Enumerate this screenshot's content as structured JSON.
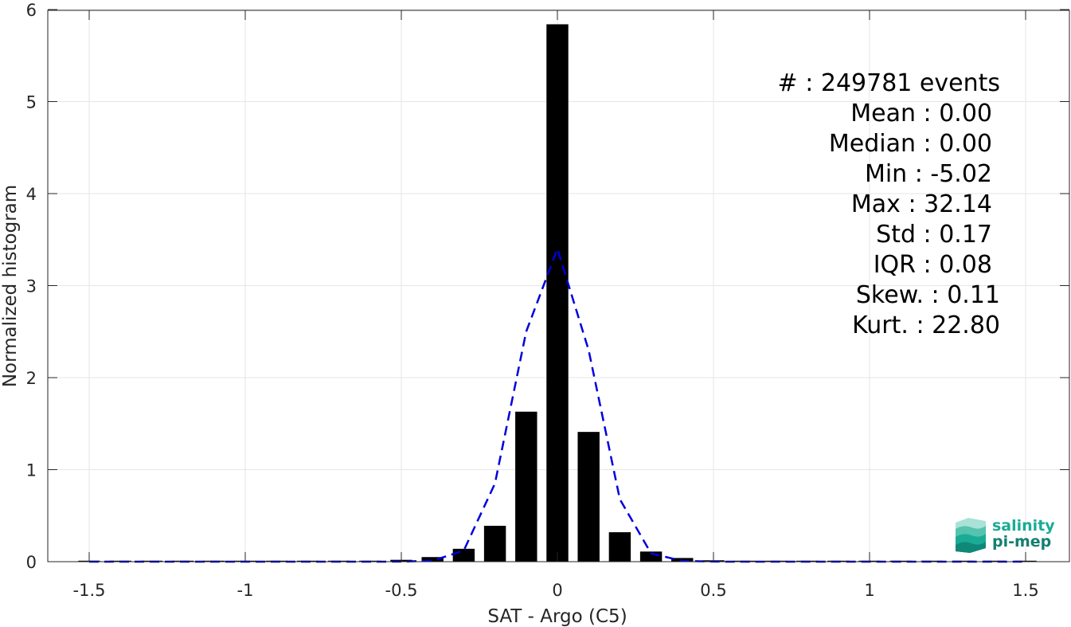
{
  "chart_data": {
    "type": "bar",
    "xlabel": "SAT - Argo (C5)",
    "ylabel": "Normalized histogram",
    "xlim": [
      -1.6,
      1.6
    ],
    "ylim": [
      0,
      6
    ],
    "xticks": [
      -1.5,
      -1,
      -0.5,
      0,
      0.5,
      1,
      1.5
    ],
    "xtick_labels": [
      "-1.5",
      "-1",
      "-0.5",
      "0",
      "0.5",
      "1",
      "1.5"
    ],
    "yticks": [
      0,
      1,
      2,
      3,
      4,
      5,
      6
    ],
    "ytick_labels": [
      "0",
      "1",
      "2",
      "3",
      "4",
      "5",
      "6"
    ],
    "grid": true,
    "bar_width": 0.07,
    "bars": {
      "x": [
        -1.5,
        -1.4,
        -1.3,
        -1.2,
        -1.1,
        -1.0,
        -0.9,
        -0.8,
        -0.7,
        -0.6,
        -0.5,
        -0.4,
        -0.3,
        -0.2,
        -0.1,
        0.0,
        0.1,
        0.2,
        0.3,
        0.4,
        0.5,
        0.6,
        0.7,
        0.8,
        0.9,
        1.0,
        1.1,
        1.2,
        1.3,
        1.4,
        1.5
      ],
      "values": [
        0.002,
        0.002,
        0.002,
        0.002,
        0.002,
        0.002,
        0.003,
        0.003,
        0.004,
        0.006,
        0.02,
        0.05,
        0.14,
        0.39,
        1.63,
        5.84,
        1.41,
        0.32,
        0.11,
        0.04,
        0.015,
        0.006,
        0.004,
        0.003,
        0.003,
        0.002,
        0.002,
        0.002,
        0.002,
        0.002,
        0.002
      ],
      "color": "#000000"
    },
    "fit_line": {
      "style": "dashed",
      "color": "#0000dd",
      "x": [
        -1.5,
        -1.4,
        -1.3,
        -1.2,
        -1.1,
        -1.0,
        -0.9,
        -0.8,
        -0.7,
        -0.6,
        -0.5,
        -0.4,
        -0.3,
        -0.2,
        -0.1,
        0.0,
        0.1,
        0.2,
        0.3,
        0.4,
        0.5,
        0.6,
        0.7,
        0.8,
        0.9,
        1.0,
        1.1,
        1.2,
        1.3,
        1.4,
        1.5
      ],
      "y": [
        0,
        0,
        0,
        0,
        0,
        0,
        0,
        0,
        0,
        0,
        0.001,
        0.01,
        0.12,
        0.85,
        2.5,
        3.4,
        2.3,
        0.68,
        0.09,
        0.008,
        0.001,
        0,
        0,
        0,
        0,
        0,
        0,
        0,
        0,
        0,
        0
      ]
    },
    "stats": [
      "#  : 249781 events",
      "Mean : 0.00",
      "Median : 0.00",
      "Min : -5.02",
      "Max : 32.14",
      "Std : 0.17",
      "IQR : 0.08",
      "Skew. : 0.11",
      "Kurt. : 22.80"
    ],
    "stats_placement": "top-right"
  },
  "logo": {
    "line1": "salinity",
    "line2": "pi-mep",
    "color": "#1aab97"
  }
}
